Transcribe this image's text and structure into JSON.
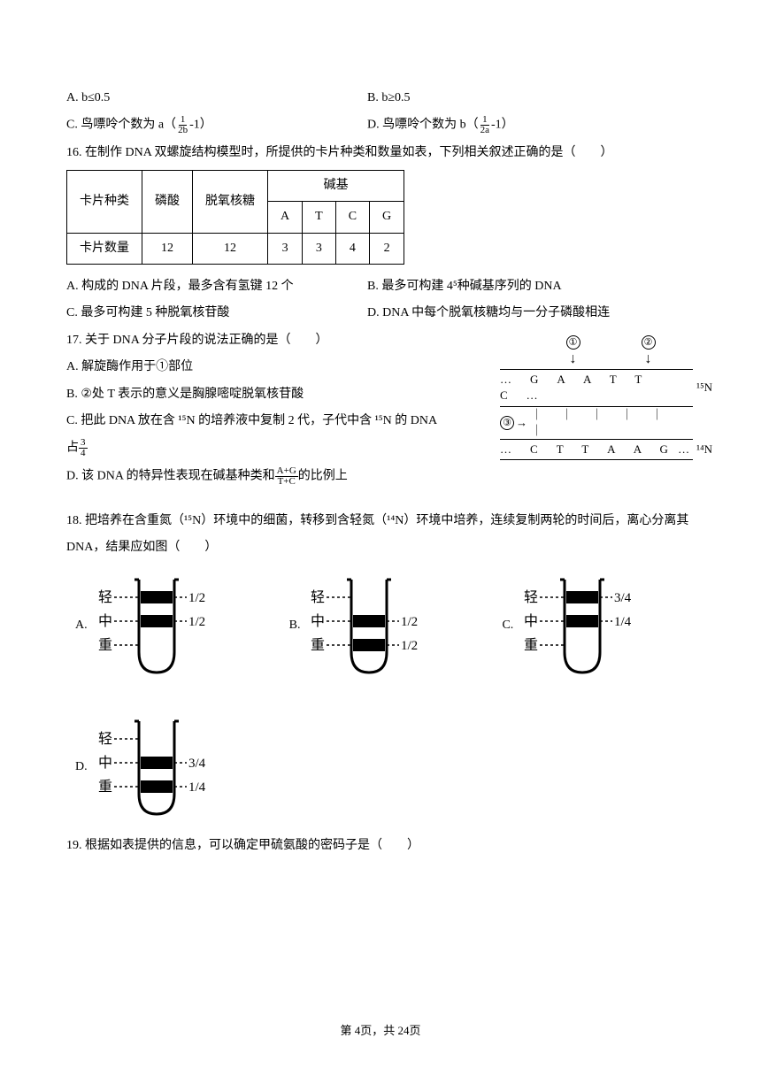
{
  "q15": {
    "optA": "A. b≤0.5",
    "optB": "B. b≥0.5",
    "optC_pre": "C. 鸟嘌呤个数为 a（",
    "optC_frac_num": "1",
    "optC_frac_den": "2b",
    "optC_post": "-1）",
    "optD_pre": "D. 鸟嘌呤个数为 b（",
    "optD_frac_num": "1",
    "optD_frac_den": "2a",
    "optD_post": "-1）"
  },
  "q16": {
    "stem": "16. 在制作 DNA 双螺旋结构模型时，所提供的卡片种类和数量如表，下列相关叙述正确的是（　　）",
    "table": {
      "h1": "卡片种类",
      "h2": "磷酸",
      "h3": "脱氧核糖",
      "h4": "碱基",
      "sub": [
        "A",
        "T",
        "C",
        "G"
      ],
      "r1": "卡片数量",
      "vals": [
        "12",
        "12",
        "3",
        "3",
        "4",
        "2"
      ]
    },
    "optA": "A. 构成的 DNA 片段，最多含有氢键 12 个",
    "optB": "B. 最多可构建 4⁵种碱基序列的 DNA",
    "optC": "C. 最多可构建 5 种脱氧核苷酸",
    "optD": "D. DNA 中每个脱氧核糖均与一分子磷酸相连"
  },
  "q17": {
    "stem": "17. 关于 DNA 分子片段的说法正确的是（　　）",
    "optA": "A. 解旋酶作用于①部位",
    "optB": "B. ②处 T 表示的意义是胸腺嘧啶脱氧核苷酸",
    "optC": "C. 把此 DNA 放在含 ¹⁵N 的培养液中复制 2 代，子代中含 ¹⁵N 的 DNA",
    "optC2_pre": "占",
    "optC2_num": "3",
    "optC2_den": "4",
    "optD_pre": "D. 该 DNA 的特异性表现在碱基种类和",
    "optD_num": "A+G",
    "optD_den": "T+C",
    "optD_post": "的比例上",
    "diagram": {
      "c1": "①",
      "c2": "②",
      "c3": "③",
      "top": "…　G　A　A　T　T　C　…",
      "mid": "｜　｜　｜　｜　｜　｜",
      "bot": "…　C　T　T　A　A　G …",
      "n15": "¹⁵N",
      "n14": "¹⁴N"
    }
  },
  "q18": {
    "stem": "18. 把培养在含重氮（¹⁵N）环境中的细菌，转移到含轻氮（¹⁴N）环境中培养，连续复制两轮的时间后，离心分离其 DNA，结果应如图（　　）",
    "labels": {
      "light": "轻",
      "mid": "中",
      "heavy": "重"
    },
    "opts": {
      "A": {
        "letter": "A.",
        "bands": [
          {
            "y": 28,
            "label": "1/2"
          },
          {
            "y": 55,
            "label": "1/2"
          }
        ]
      },
      "B": {
        "letter": "B.",
        "bands": [
          {
            "y": 55,
            "label": "1/2"
          },
          {
            "y": 82,
            "label": "1/2"
          }
        ]
      },
      "C": {
        "letter": "C.",
        "bands": [
          {
            "y": 28,
            "label": "3/4"
          },
          {
            "y": 55,
            "label": "1/4"
          }
        ]
      },
      "D": {
        "letter": "D.",
        "bands": [
          {
            "y": 55,
            "label": "3/4"
          },
          {
            "y": 82,
            "label": "1/4"
          }
        ]
      }
    }
  },
  "q19": {
    "stem": "19. 根据如表提供的信息，可以确定甲硫氨酸的密码子是（　　）"
  },
  "footer": "第 4页，共 24页"
}
